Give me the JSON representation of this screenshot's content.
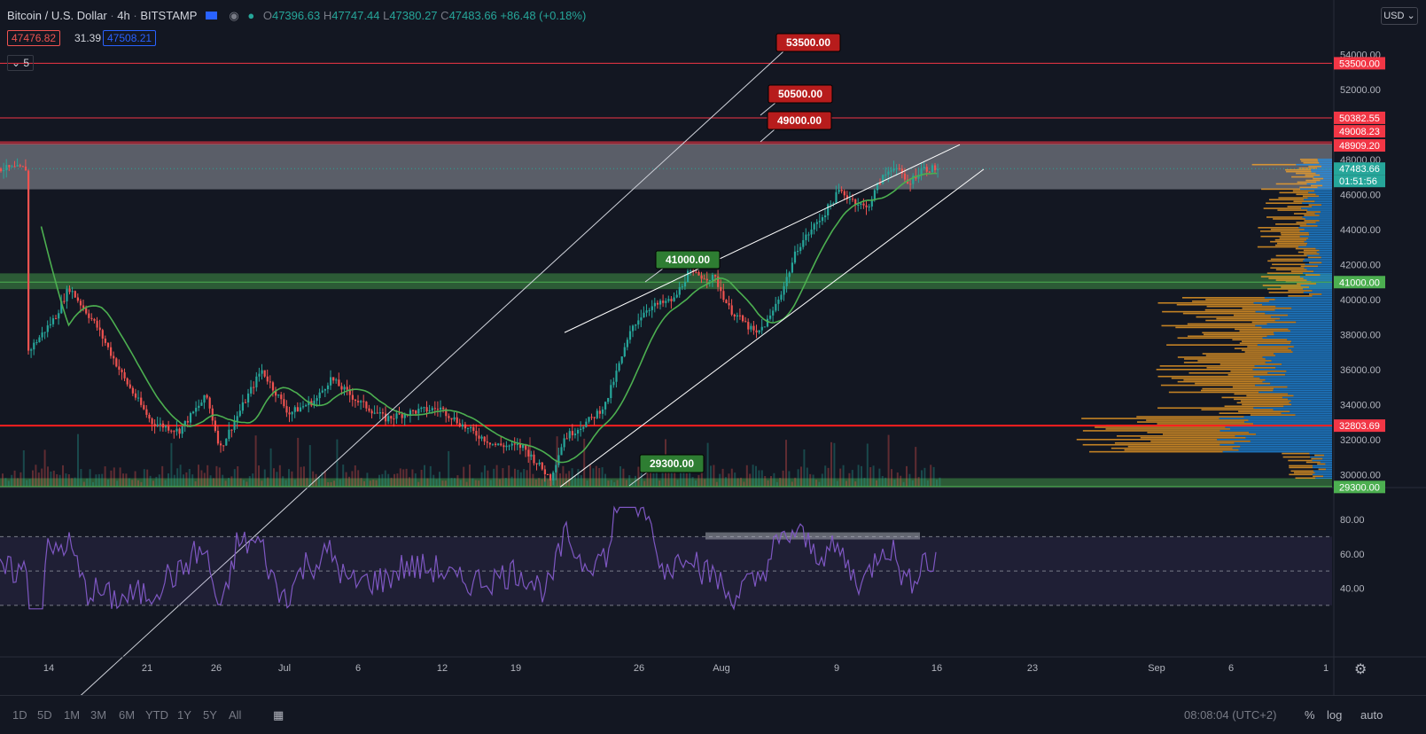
{
  "header": {
    "symbol": "Bitcoin / U.S. Dollar",
    "interval": "4h",
    "exchange": "BITSTAMP",
    "O_label": "O",
    "O": "47396.63",
    "H_label": "H",
    "H": "47747.44",
    "L_label": "L",
    "L": "47380.27",
    "C_label": "C",
    "C": "47483.66",
    "change": "+86.48 (+0.18%)",
    "bid": "47476.82",
    "spread": "31.39",
    "ask": "47508.21",
    "indicator_count": "5"
  },
  "currency_button": "USD",
  "price_axis": {
    "ticks": [
      "54000.00",
      "52000.00",
      "48000.00",
      "46000.00",
      "44000.00",
      "42000.00",
      "40000.00",
      "38000.00",
      "36000.00",
      "34000.00",
      "32000.00",
      "30000.00"
    ],
    "labels": {
      "r53500": "53500.00",
      "r50382": "50382.55",
      "r49008": "49008.23",
      "r48909": "48909.20",
      "last": "47483.66",
      "countdown": "01:51:56",
      "g41000": "41000.00",
      "r32803": "32803.69",
      "g29300": "29300.00"
    }
  },
  "rsi_axis": [
    "80.00",
    "60.00",
    "40.00"
  ],
  "time_axis": [
    "14",
    "21",
    "26",
    "Jul",
    "6",
    "12",
    "19",
    "26",
    "Aug",
    "9",
    "16",
    "23",
    "Sep",
    "6",
    "1"
  ],
  "callouts": {
    "c53500": "53500.00",
    "c50500": "50500.00",
    "c49000": "49000.00",
    "c41000": "41000.00",
    "c29300": "29300.00"
  },
  "bottom_bar": {
    "ranges": [
      "1D",
      "5D",
      "1M",
      "3M",
      "6M",
      "YTD",
      "1Y",
      "5Y",
      "All"
    ],
    "clock": "08:08:04 (UTC+2)",
    "pct": "%",
    "log": "log",
    "auto": "auto"
  },
  "colors": {
    "background": "#131722",
    "bull": "#26a69a",
    "bear": "#ef5350",
    "sma": "#4caf50",
    "rsi": "#7e57c2",
    "resistance": "#f23645",
    "support": "#4caf50"
  },
  "chart_data": {
    "type": "candlestick",
    "close_path": [
      [
        "Jun 12",
        37000
      ],
      [
        "Jun 14",
        39000
      ],
      [
        "Jun 15",
        40700
      ],
      [
        "Jun 17",
        38500
      ],
      [
        "Jun 19",
        35500
      ],
      [
        "Jun 21",
        33000
      ],
      [
        "Jun 23",
        32500
      ],
      [
        "Jun 25",
        34500
      ],
      [
        "Jun 26",
        31500
      ],
      [
        "Jun 28",
        34500
      ],
      [
        "Jun 29",
        36000
      ],
      [
        "Jul 1",
        33500
      ],
      [
        "Jul 3",
        34300
      ],
      [
        "Jul 4",
        35500
      ],
      [
        "Jul 6",
        34200
      ],
      [
        "Jul 8",
        33200
      ],
      [
        "Jul 10",
        33600
      ],
      [
        "Jul 12",
        33800
      ],
      [
        "Jul 14",
        32600
      ],
      [
        "Jul 16",
        31700
      ],
      [
        "Jul 18",
        31600
      ],
      [
        "Jul 20",
        29800
      ],
      [
        "Jul 21",
        32100
      ],
      [
        "Jul 23",
        33200
      ],
      [
        "Jul 24",
        34000
      ],
      [
        "Jul 26",
        38500
      ],
      [
        "Jul 27",
        39500
      ],
      [
        "Jul 29",
        40000
      ],
      [
        "Jul 30",
        41500
      ],
      [
        "Aug 1",
        41200
      ],
      [
        "Aug 2",
        39500
      ],
      [
        "Aug 4",
        38000
      ],
      [
        "Aug 5",
        39000
      ],
      [
        "Aug 6",
        40800
      ],
      [
        "Aug 7",
        43000
      ],
      [
        "Aug 9",
        45000
      ],
      [
        "Aug 10",
        46200
      ],
      [
        "Aug 12",
        45200
      ],
      [
        "Aug 13",
        46800
      ],
      [
        "Aug 14",
        47700
      ],
      [
        "Aug 15",
        46600
      ],
      [
        "Aug 16",
        47483.66
      ]
    ],
    "sma_color": "#4caf50",
    "volume_profile": true,
    "horizontal_levels": [
      53500,
      50382.55,
      49008.23,
      48909.2,
      41000,
      32803.69,
      29300
    ],
    "zones": [
      {
        "from": 46300,
        "to": 48900,
        "color": "gray"
      },
      {
        "from": 40600,
        "to": 41500,
        "color": "green"
      },
      {
        "from": 29300,
        "to": 29800,
        "color": "green"
      }
    ],
    "rising_wedge": true,
    "rsi": {
      "upper": 70,
      "lower": 30,
      "last": 61
    }
  }
}
